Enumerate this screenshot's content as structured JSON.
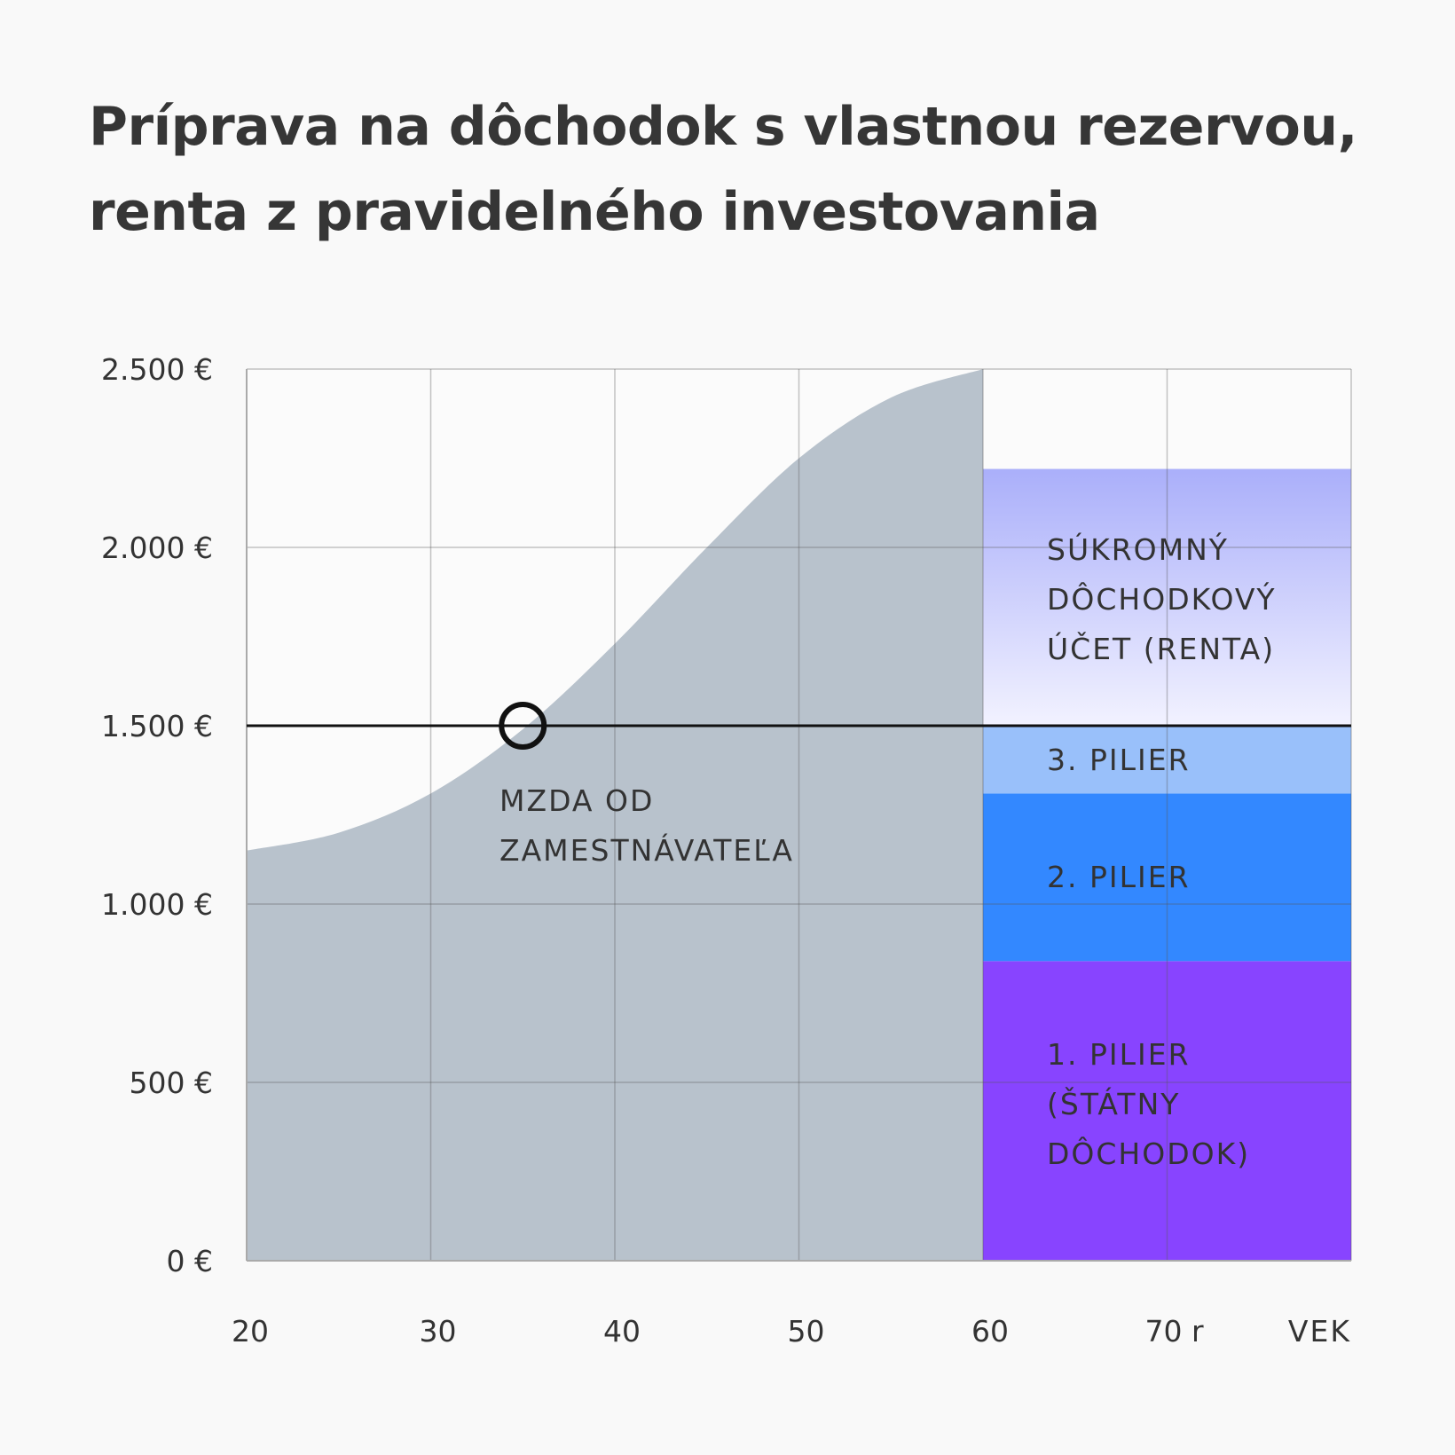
{
  "title_lines": [
    "Príprava na dôchodok s vlastnou rezervou,",
    "renta z pravidelného investovania"
  ],
  "chart_data": {
    "type": "area",
    "xlabel": "VEK",
    "x_ticks": [
      20,
      30,
      40,
      50,
      60,
      70
    ],
    "x_tick_labels": [
      "20",
      "30",
      "40",
      "50",
      "60",
      "70 r"
    ],
    "xlim": [
      20,
      80
    ],
    "y_ticks": [
      0,
      500,
      1000,
      1500,
      2000,
      2500
    ],
    "y_tick_labels": [
      "0 €",
      "500 €",
      "1.000 €",
      "1.500 €",
      "2.000 €",
      "2.500 €"
    ],
    "ylim": [
      0,
      2500
    ],
    "grid": true,
    "wage": {
      "label": [
        "MZDA OD",
        "ZAMESTNÁVATEĽA"
      ],
      "color": "#b8c2cc",
      "x": [
        20,
        25,
        30,
        35,
        40,
        45,
        50,
        55,
        60
      ],
      "y": [
        1150,
        1200,
        1310,
        1490,
        1730,
        2000,
        2250,
        2420,
        2500
      ]
    },
    "reference_line": {
      "y": 1500
    },
    "marker": {
      "x": 35,
      "y": 1500
    },
    "retirement_stack": {
      "x_start": 60,
      "x_end": 80,
      "segments": [
        {
          "label": [
            "1. PILIER",
            "(ŠTÁTNY",
            "DÔCHODOK)"
          ],
          "from": 0,
          "to": 840,
          "color": "#8844ff"
        },
        {
          "label": [
            "2. PILIER"
          ],
          "from": 840,
          "to": 1310,
          "color": "#3388ff"
        },
        {
          "label": [
            "3. PILIER"
          ],
          "from": 1310,
          "to": 1500,
          "color": "#99c0fa"
        },
        {
          "label": [
            "SÚKROMNÝ",
            "DÔCHODKOVÝ",
            "ÚČET (RENTA)"
          ],
          "from": 1500,
          "to": 2220,
          "color_top": "#aaaffa",
          "color_bottom": "#f2f2ff"
        }
      ]
    }
  }
}
